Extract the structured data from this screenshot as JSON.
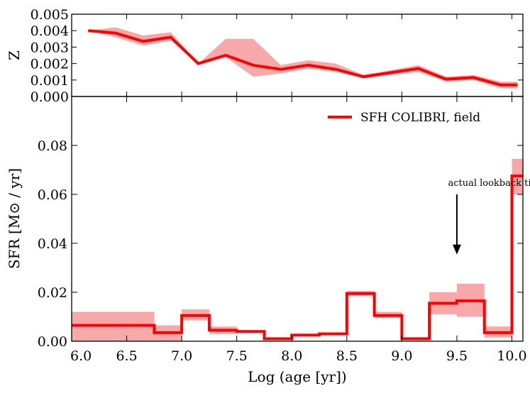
{
  "chart_data": [
    {
      "type": "line",
      "panel": "top",
      "ylabel": "Z",
      "xlim": [
        6.0,
        10.1
      ],
      "ylim": [
        0.0,
        0.005
      ],
      "yticks": [
        0.0,
        0.001,
        0.002,
        0.003,
        0.004,
        0.005
      ],
      "ytick_labels": [
        "0.000",
        "0.001",
        "0.002",
        "0.003",
        "0.004",
        "0.005"
      ],
      "series": [
        {
          "name": "Z",
          "color": "#ff0000",
          "band_color": "#f7a8a8",
          "x": [
            6.15,
            6.4,
            6.65,
            6.9,
            7.15,
            7.4,
            7.65,
            7.9,
            8.15,
            8.4,
            8.65,
            8.9,
            9.15,
            9.4,
            9.65,
            9.9,
            10.05
          ],
          "y": [
            0.004,
            0.00385,
            0.00335,
            0.0036,
            0.002,
            0.0025,
            0.0019,
            0.00165,
            0.0019,
            0.00165,
            0.0012,
            0.00145,
            0.0017,
            0.00105,
            0.00115,
            0.0007,
            0.0007
          ],
          "y_low": [
            0.004,
            0.0036,
            0.0031,
            0.0034,
            0.002,
            0.0024,
            0.0012,
            0.0014,
            0.0017,
            0.0015,
            0.0011,
            0.0013,
            0.0015,
            0.0009,
            0.001,
            0.0005,
            0.0005
          ],
          "y_high": [
            0.004,
            0.0042,
            0.0037,
            0.0039,
            0.002,
            0.0035,
            0.0035,
            0.0019,
            0.0022,
            0.002,
            0.0013,
            0.0016,
            0.0019,
            0.0012,
            0.0013,
            0.0009,
            0.0009
          ]
        }
      ]
    },
    {
      "type": "step",
      "panel": "bottom",
      "xlabel": "Log (age [yr])",
      "ylabel": "SFR [M⊙ / yr]",
      "xlim": [
        6.0,
        10.1
      ],
      "ylim": [
        0.0,
        0.1
      ],
      "xticks": [
        6.0,
        6.5,
        7.0,
        7.5,
        8.0,
        8.5,
        9.0,
        9.5,
        10.0
      ],
      "xtick_labels": [
        "6.0",
        "6.5",
        "7.0",
        "7.5",
        "8.0",
        "8.5",
        "9.0",
        "9.5",
        "10.0"
      ],
      "yticks": [
        0.0,
        0.02,
        0.04,
        0.06,
        0.08
      ],
      "ytick_labels": [
        "0.00",
        "0.02",
        "0.04",
        "0.06",
        "0.08"
      ],
      "legend": {
        "label": "SFH COLIBRI, field",
        "location": "top-right"
      },
      "annotation": {
        "text": "actual lookback time",
        "arrow_x": 9.5,
        "arrow_from_y": 0.06,
        "arrow_to_y": 0.036
      },
      "bins": [
        {
          "x0": 6.0,
          "x1": 6.75,
          "value": 0.0065,
          "low": 0.0,
          "high": 0.012
        },
        {
          "x0": 6.75,
          "x1": 7.0,
          "value": 0.0035,
          "low": 0.0,
          "high": 0.0065
        },
        {
          "x0": 7.0,
          "x1": 7.25,
          "value": 0.0105,
          "low": 0.0085,
          "high": 0.013
        },
        {
          "x0": 7.25,
          "x1": 7.5,
          "value": 0.0045,
          "low": 0.003,
          "high": 0.006
        },
        {
          "x0": 7.5,
          "x1": 7.75,
          "value": 0.004,
          "low": 0.0035,
          "high": 0.0045
        },
        {
          "x0": 7.75,
          "x1": 8.0,
          "value": 0.001,
          "low": 0.0005,
          "high": 0.0015
        },
        {
          "x0": 8.0,
          "x1": 8.25,
          "value": 0.0025,
          "low": 0.002,
          "high": 0.003
        },
        {
          "x0": 8.25,
          "x1": 8.5,
          "value": 0.003,
          "low": 0.0025,
          "high": 0.0035
        },
        {
          "x0": 8.5,
          "x1": 8.75,
          "value": 0.0195,
          "low": 0.0185,
          "high": 0.0205
        },
        {
          "x0": 8.75,
          "x1": 9.0,
          "value": 0.0105,
          "low": 0.0095,
          "high": 0.012
        },
        {
          "x0": 9.0,
          "x1": 9.25,
          "value": 0.001,
          "low": 0.0005,
          "high": 0.0015
        },
        {
          "x0": 9.25,
          "x1": 9.5,
          "value": 0.0155,
          "low": 0.011,
          "high": 0.02
        },
        {
          "x0": 9.5,
          "x1": 9.75,
          "value": 0.0165,
          "low": 0.01,
          "high": 0.0235
        },
        {
          "x0": 9.75,
          "x1": 10.0,
          "value": 0.0035,
          "low": 0.0015,
          "high": 0.006
        },
        {
          "x0": 10.0,
          "x1": 10.1,
          "value": 0.0675,
          "low": 0.06,
          "high": 0.0745
        }
      ],
      "line_color": "#ff0000",
      "band_color": "#f7a8a8"
    }
  ]
}
